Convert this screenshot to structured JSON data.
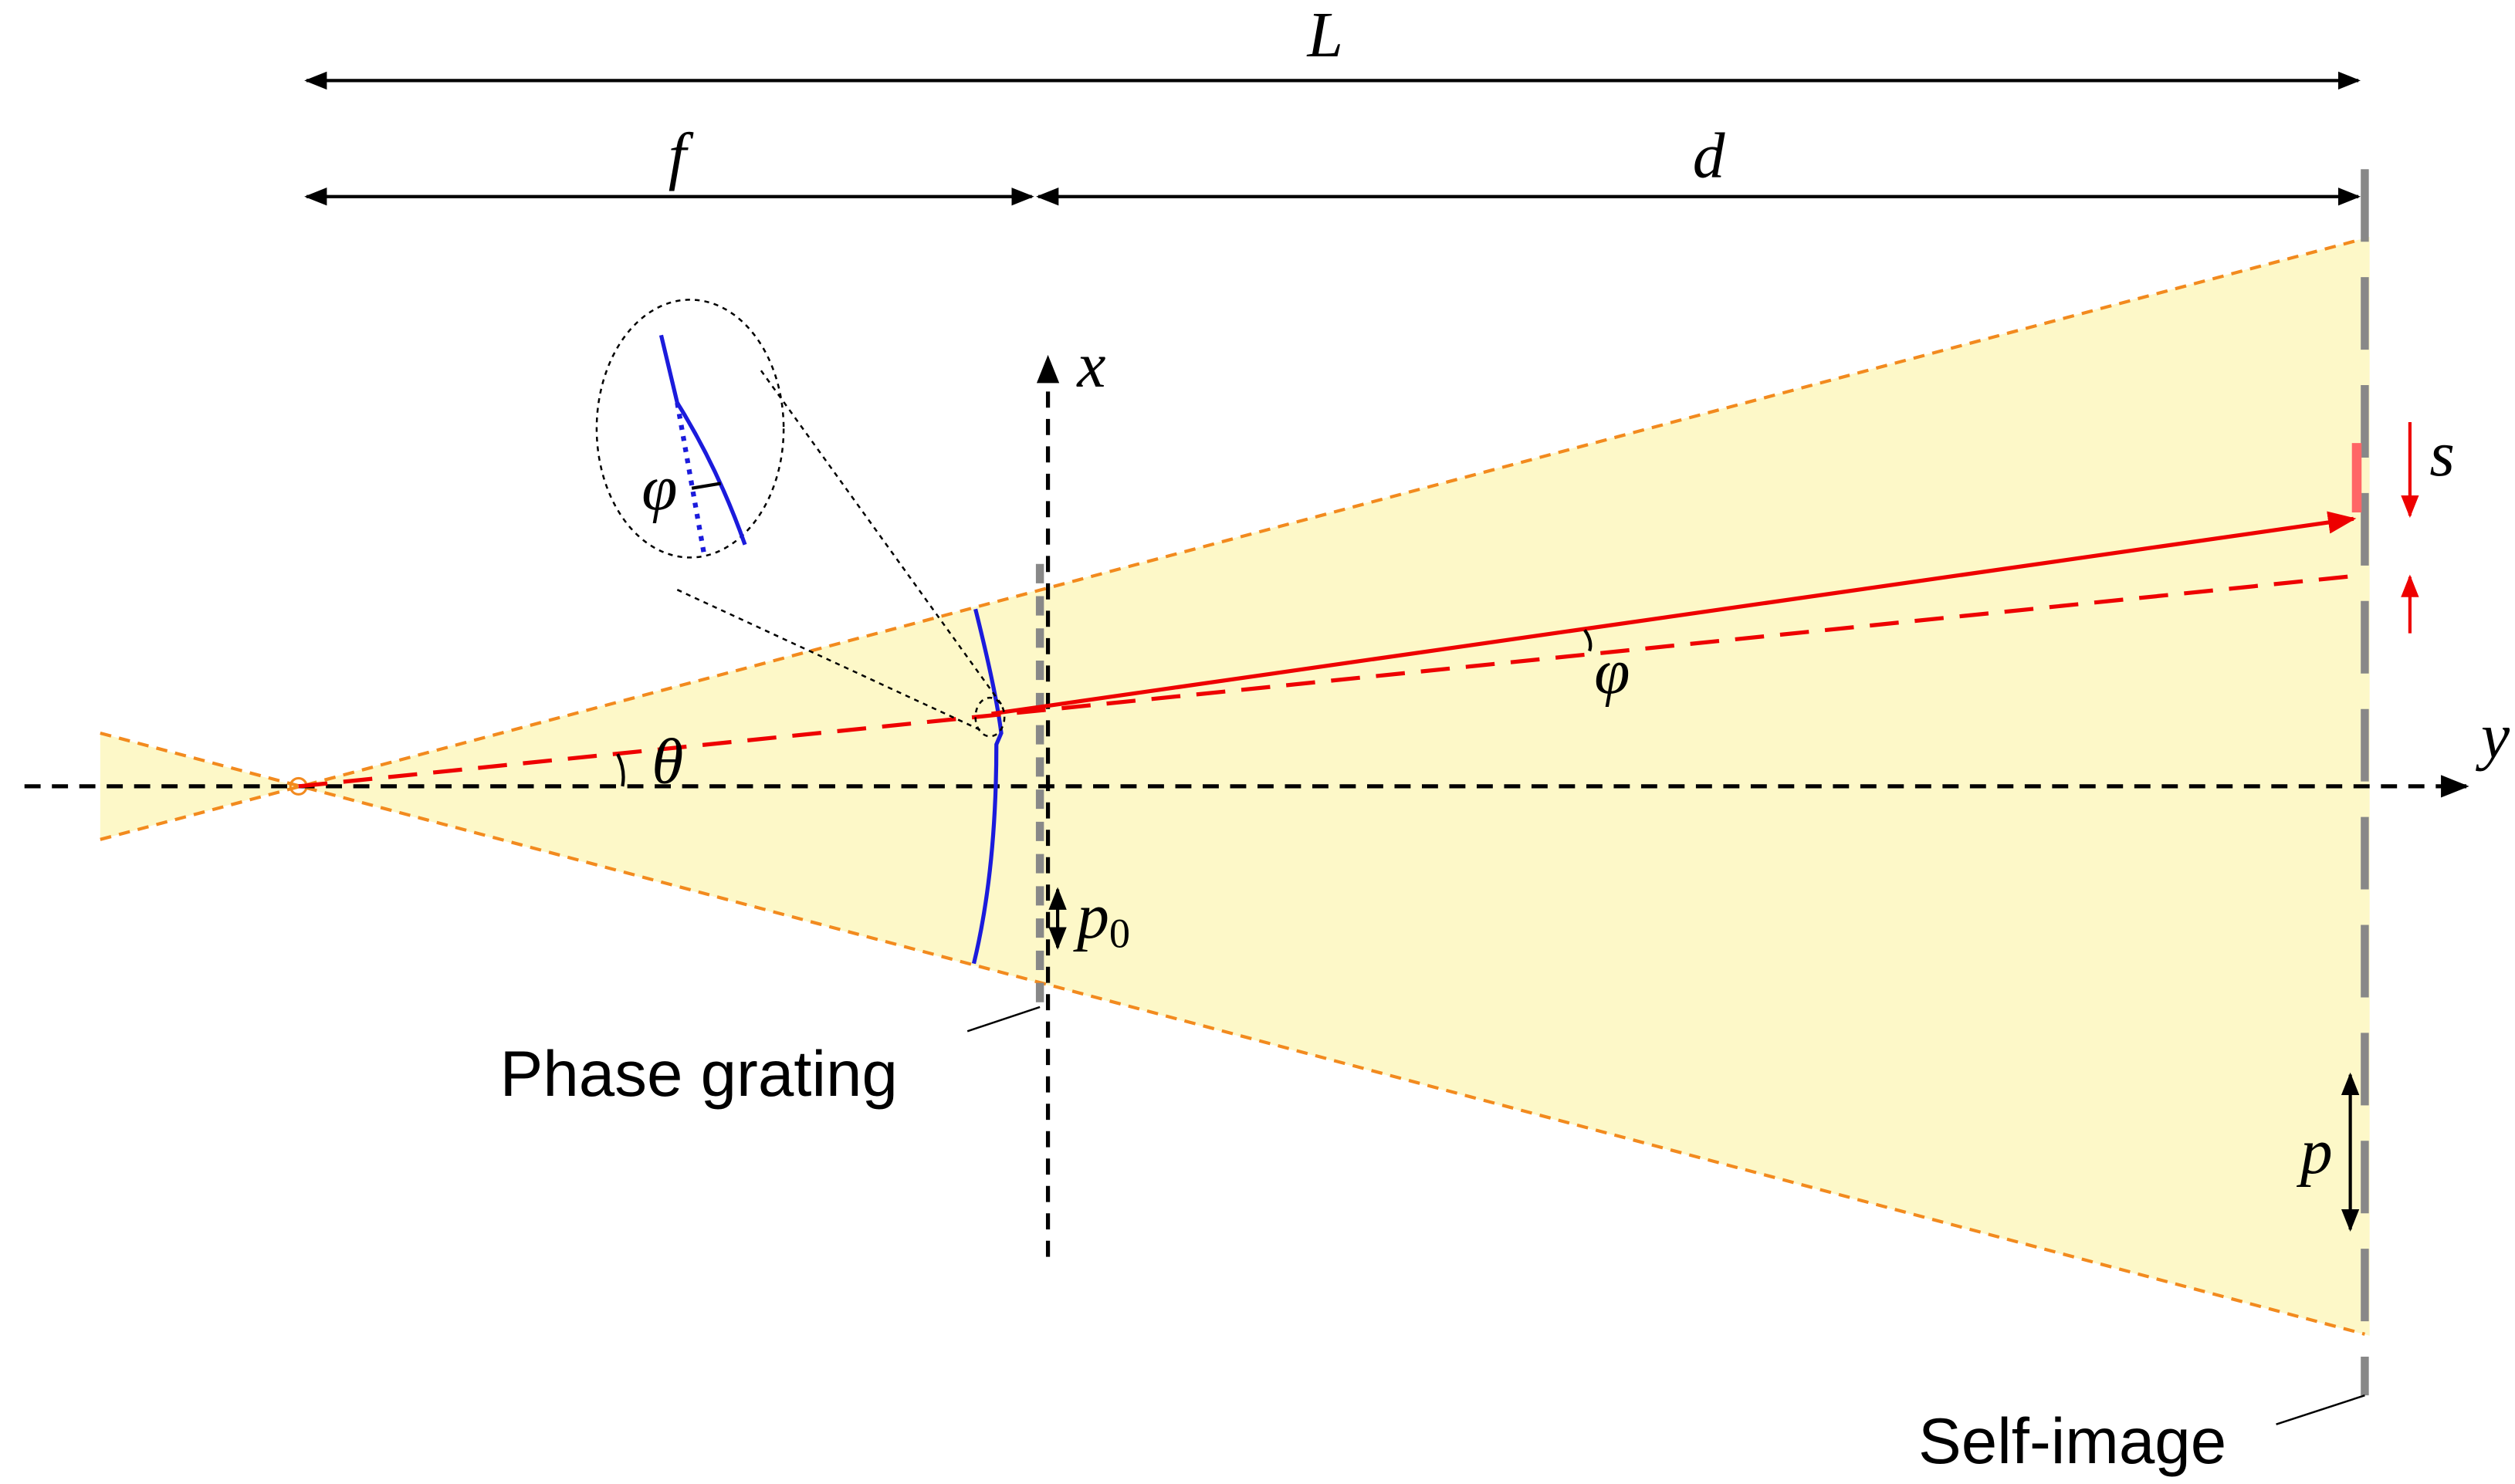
{
  "labels": {
    "L": "L",
    "f": "f",
    "d": "d",
    "x": "x",
    "y": "y",
    "theta": "θ",
    "phi_inset": "φ",
    "phi_main": "φ",
    "s": "s",
    "p0": "p",
    "p0_sub": "0",
    "p": "p",
    "phase_grating": "Phase grating",
    "self_image": "Self-image"
  }
}
